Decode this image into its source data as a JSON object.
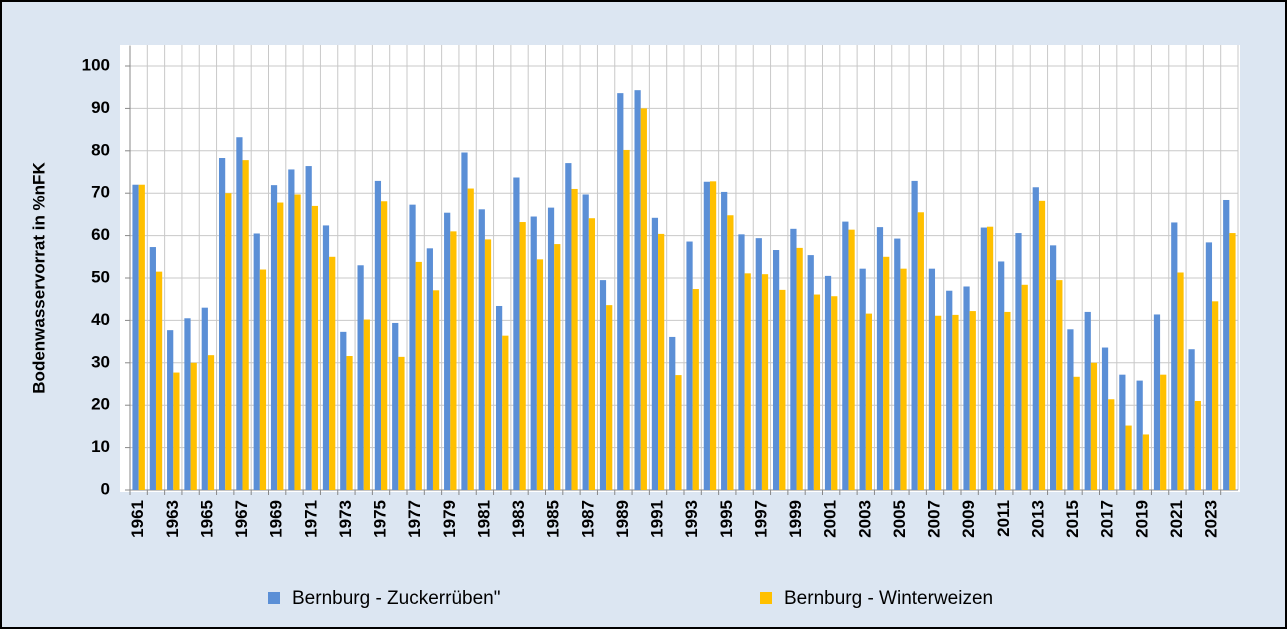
{
  "chart_data": {
    "type": "bar",
    "y_label": "Bodenwasservorrat in %nFK",
    "categories": [
      "1961",
      null,
      "1963",
      null,
      "1965",
      null,
      "1967",
      null,
      "1969",
      null,
      "1971",
      null,
      "1973",
      null,
      "1975",
      null,
      "1977",
      null,
      "1979",
      null,
      "1981",
      null,
      "1983",
      null,
      "1985",
      null,
      "1987",
      null,
      "1989",
      null,
      "1991",
      null,
      "1993",
      null,
      "1995",
      null,
      "1997",
      null,
      "1999",
      null,
      "2001",
      null,
      "2003",
      null,
      "2005",
      null,
      "2007",
      null,
      "2009",
      null,
      "2011",
      null,
      "2013",
      null,
      "2015",
      null,
      "2017",
      null,
      "2019",
      null,
      "2021",
      null,
      "2023",
      null
    ],
    "series": [
      {
        "name": "Bernburg - Zuckerrüben\"",
        "color": "#5b8fd6",
        "values": [
          72,
          57.3,
          37.7,
          40.5,
          43,
          78.3,
          83.2,
          60.5,
          71.9,
          75.6,
          76.4,
          62.4,
          37.3,
          53,
          72.9,
          39.4,
          67.3,
          57,
          65.4,
          79.6,
          66.2,
          43.4,
          73.7,
          64.5,
          66.6,
          77.1,
          69.7,
          49.5,
          93.6,
          94.3,
          64.2,
          36.1,
          58.6,
          72.7,
          70.3,
          60.3,
          59.4,
          56.6,
          61.6,
          55.4,
          50.5,
          63.3,
          52.2,
          62,
          59.3,
          72.9,
          52.2,
          47,
          48,
          61.9,
          53.9,
          60.6,
          71.4,
          57.7,
          37.9,
          42,
          33.6,
          27.2,
          25.8,
          41.4,
          63.1,
          33.2,
          58.4,
          68.4
        ]
      },
      {
        "name": "Bernburg - Winterweizen",
        "color": "#ffc000",
        "values": [
          72,
          51.5,
          27.7,
          30,
          31.8,
          70,
          77.8,
          52,
          67.8,
          69.7,
          67,
          55,
          31.6,
          40.2,
          68.1,
          31.4,
          53.8,
          47.1,
          61,
          71.1,
          59.1,
          36.4,
          63.2,
          54.4,
          58,
          71,
          64.1,
          43.6,
          80.2,
          90,
          60.4,
          27.1,
          47.4,
          72.8,
          64.8,
          51.1,
          50.9,
          47.2,
          57.1,
          46.1,
          45.7,
          61.4,
          41.6,
          55,
          52.2,
          65.5,
          41.1,
          41.3,
          42.2,
          62.1,
          42,
          48.4,
          68.2,
          49.5,
          26.7,
          30,
          21.4,
          15.2,
          13.1,
          27.2,
          51.3,
          21,
          44.5,
          60.6
        ]
      }
    ],
    "ylim": [
      0,
      100
    ],
    "yticks": [
      0,
      10,
      20,
      30,
      40,
      50,
      60,
      70,
      80,
      90,
      100
    ],
    "grid": true
  }
}
